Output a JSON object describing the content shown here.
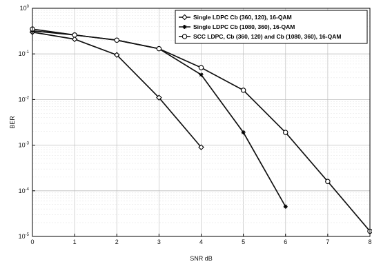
{
  "chart_data": {
    "type": "line",
    "title": "",
    "xlabel": "SNR dB",
    "ylabel": "BER",
    "xlim": [
      0,
      8
    ],
    "ylim": [
      1e-05,
      1
    ],
    "yscale": "log",
    "grid": true,
    "legend_position": "top-right",
    "x_ticks": [
      "0",
      "1",
      "2",
      "3",
      "4",
      "5",
      "6",
      "7",
      "8"
    ],
    "y_ticks": [
      {
        "base": "10",
        "exp": "0"
      },
      {
        "base": "10",
        "exp": "-1"
      },
      {
        "base": "10",
        "exp": "-2"
      },
      {
        "base": "10",
        "exp": "-3"
      },
      {
        "base": "10",
        "exp": "-4"
      },
      {
        "base": "10",
        "exp": "-5"
      }
    ],
    "series": [
      {
        "name": "Single LDPC Cb (360, 120), 16-QAM",
        "marker": "diamond",
        "color": "#111111",
        "x": [
          0,
          1,
          2,
          3,
          4
        ],
        "y": [
          0.3,
          0.21,
          0.095,
          0.011,
          0.0009
        ]
      },
      {
        "name": "Single LDPC Cb (1080, 360), 16-QAM",
        "marker": "star",
        "color": "#111111",
        "x": [
          0,
          1,
          2,
          3,
          4,
          5,
          6
        ],
        "y": [
          0.32,
          0.26,
          0.2,
          0.13,
          0.035,
          0.0019,
          4.5e-05
        ]
      },
      {
        "name": "SCC LDPC, Cb (360, 120) and Cb (1080, 360), 16-QAM",
        "marker": "circle",
        "color": "#111111",
        "x": [
          0,
          1,
          2,
          3,
          4,
          5,
          6,
          7,
          8
        ],
        "y": [
          0.35,
          0.26,
          0.2,
          0.13,
          0.05,
          0.016,
          0.0019,
          0.00016,
          1.3e-05
        ]
      }
    ]
  }
}
